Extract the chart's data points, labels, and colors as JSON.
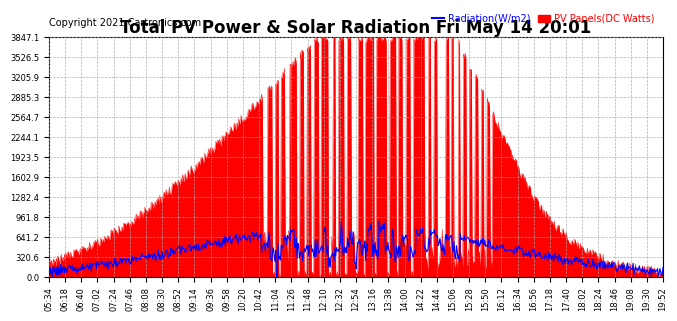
{
  "title": "Total PV Power & Solar Radiation Fri May 14 20:01",
  "copyright": "Copyright 2021 Cartronics.com",
  "legend_radiation": "Radiation(W/m2)",
  "legend_pv": "PV Panels(DC Watts)",
  "ymin": 0.0,
  "ymax": 3847.1,
  "yticks": [
    0.0,
    320.6,
    641.2,
    961.8,
    1282.4,
    1602.9,
    1923.5,
    2244.1,
    2564.7,
    2885.3,
    3205.9,
    3526.5,
    3847.1
  ],
  "radiation_color": "#0000ff",
  "pv_color": "#ff0000",
  "background_color": "#ffffff",
  "plot_bg_color": "#ffffff",
  "grid_color": "#aaaaaa",
  "title_fontsize": 12,
  "copyright_fontsize": 7,
  "tick_fontsize": 6,
  "xtick_labels": [
    "05:34",
    "06:18",
    "06:40",
    "07:02",
    "07:24",
    "07:46",
    "08:08",
    "08:30",
    "08:52",
    "09:14",
    "09:36",
    "09:58",
    "10:20",
    "10:42",
    "11:04",
    "11:26",
    "11:48",
    "12:10",
    "12:32",
    "12:54",
    "13:16",
    "13:38",
    "14:00",
    "14:22",
    "14:44",
    "15:06",
    "15:28",
    "15:50",
    "16:12",
    "16:34",
    "16:56",
    "17:18",
    "17:40",
    "18:02",
    "18:24",
    "18:46",
    "19:08",
    "19:30",
    "19:52"
  ]
}
